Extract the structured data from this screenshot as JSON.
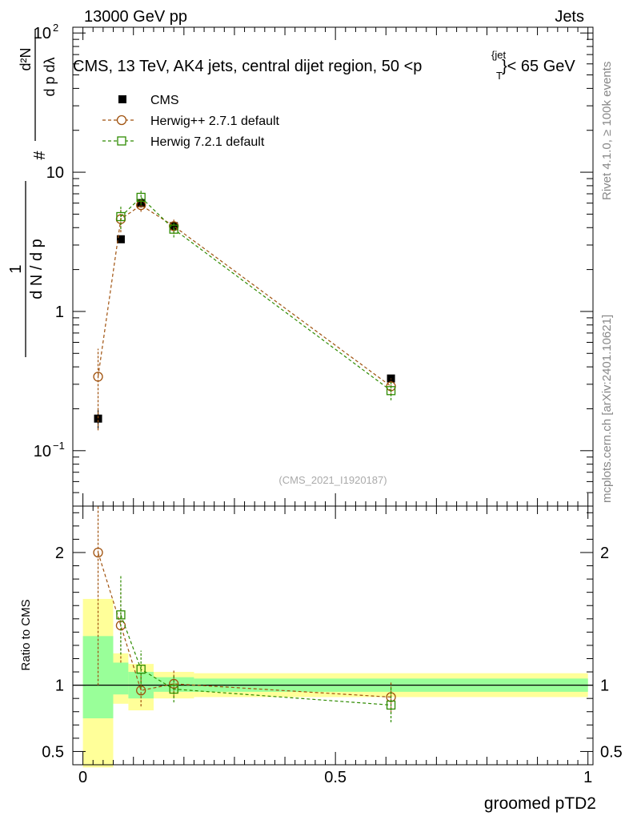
{
  "header": {
    "left": "13000 GeV pp",
    "right": "Jets"
  },
  "side_labels": {
    "rivet": "Rivet 4.1.0, ≥ 100k events",
    "mcplots": "mcplots.cern.ch [arXiv:2401.10621]"
  },
  "colors": {
    "data": "#000000",
    "herwigpp": "#a0520e",
    "herwig7": "#2e8b00",
    "band_outer": "#ffff99",
    "band_inner": "#99ff99"
  },
  "chart_data": {
    "type": "scatter",
    "title": "CMS, 13 TeV, AK4 jets, central dijet region, 50 <p",
    "title_sup": "{jet",
    "title_sub": "T",
    "title_end": "}< 65 GeV",
    "analysis_tag": "(CMS_2021_I1920187)",
    "xlabel": "groomed pTD2",
    "ylabel_main": "1/(dN/dpT) d²N/(dpT dλ)",
    "ylabel_ratio": "Ratio to CMS",
    "xlim": [
      -0.02,
      1.01
    ],
    "ylim_main": [
      0.04,
      110
    ],
    "ylim_ratio": [
      0.4,
      2.35
    ],
    "x_ticks": [
      {
        "value": 0,
        "label": "0"
      },
      {
        "value": 0.5,
        "label": "0.5"
      },
      {
        "value": 1,
        "label": "1"
      }
    ],
    "y_ticks_main": [
      {
        "value": 0.1,
        "label": "10",
        "sup": "−1"
      },
      {
        "value": 1,
        "label": "1",
        "sup": ""
      },
      {
        "value": 10,
        "label": "10",
        "sup": ""
      },
      {
        "value": 100,
        "label": "10",
        "sup": "2"
      }
    ],
    "y_ticks_ratio": [
      {
        "value": 0.5,
        "label": "0.5"
      },
      {
        "value": 1,
        "label": "1"
      },
      {
        "value": 2,
        "label": "2"
      }
    ],
    "bins": [
      {
        "lo": 0.0,
        "hi": 0.06
      },
      {
        "lo": 0.06,
        "hi": 0.09
      },
      {
        "lo": 0.09,
        "hi": 0.14
      },
      {
        "lo": 0.14,
        "hi": 0.22
      },
      {
        "lo": 0.22,
        "hi": 1.0
      }
    ],
    "ratio_bands": [
      {
        "inner": [
          0.75,
          1.37
        ],
        "outer": [
          0.38,
          1.65
        ]
      },
      {
        "inner": [
          0.93,
          1.17
        ],
        "outer": [
          0.86,
          1.24
        ]
      },
      {
        "inner": [
          0.9,
          1.1
        ],
        "outer": [
          0.81,
          1.16
        ]
      },
      {
        "inner": [
          0.95,
          1.06
        ],
        "outer": [
          0.9,
          1.1
        ]
      },
      {
        "inner": [
          0.95,
          1.05
        ],
        "outer": [
          0.91,
          1.09
        ]
      }
    ],
    "series": [
      {
        "name": "CMS",
        "marker": "square-filled",
        "x": [
          0.03,
          0.075,
          0.115,
          0.18,
          0.61
        ],
        "y": [
          0.17,
          3.3,
          6.0,
          4.1,
          0.33
        ],
        "yerr": [
          0.025,
          0.2,
          0.3,
          0.2,
          0.02
        ]
      },
      {
        "name": "Herwig++ 2.7.1 default",
        "marker": "circle-open",
        "x": [
          0.03,
          0.075,
          0.115,
          0.18,
          0.61
        ],
        "y": [
          0.34,
          4.6,
          5.8,
          4.1,
          0.29
        ],
        "yerr": [
          0.2,
          0.9,
          0.6,
          0.5,
          0.04
        ],
        "ratio": [
          2.0,
          1.45,
          0.96,
          1.01,
          0.91
        ],
        "ratio_err": [
          1.0,
          0.28,
          0.12,
          0.1,
          0.12
        ]
      },
      {
        "name": "Herwig 7.2.1 default",
        "marker": "square-open",
        "x": [
          0.075,
          0.115,
          0.18,
          0.61
        ],
        "y": [
          4.8,
          6.6,
          3.9,
          0.27
        ],
        "yerr": [
          0.9,
          0.8,
          0.5,
          0.04
        ],
        "ratio": [
          1.53,
          1.12,
          0.97,
          0.85
        ],
        "ratio_err": [
          0.3,
          0.14,
          0.1,
          0.13
        ]
      }
    ]
  }
}
